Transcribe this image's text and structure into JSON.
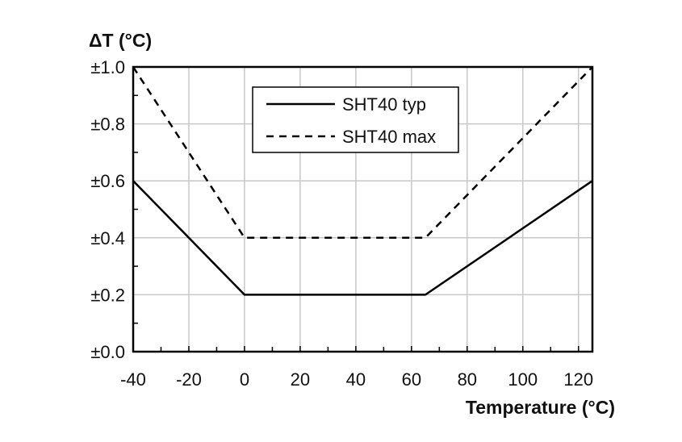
{
  "chart_data": {
    "type": "line",
    "ylabel": "ΔT (°C)",
    "xlabel": "Temperature (°C)",
    "xlim": [
      -40,
      125
    ],
    "ylim": [
      0,
      1.0
    ],
    "x_ticks": [
      -40,
      -20,
      0,
      20,
      40,
      60,
      80,
      100,
      120
    ],
    "y_ticks": [
      0.0,
      0.2,
      0.4,
      0.6,
      0.8,
      1.0
    ],
    "y_tick_labels": [
      "±0.0",
      "±0.2",
      "±0.4",
      "±0.6",
      "±0.8",
      "±1.0"
    ],
    "grid": true,
    "legend_position": "top-center",
    "series": [
      {
        "name": "SHT40 typ",
        "style": "solid",
        "points": [
          [
            -40,
            0.6
          ],
          [
            0,
            0.2
          ],
          [
            65,
            0.2
          ],
          [
            125,
            0.6
          ]
        ]
      },
      {
        "name": "SHT40 max",
        "style": "dashed",
        "points": [
          [
            -40,
            1.0
          ],
          [
            0,
            0.4
          ],
          [
            65,
            0.4
          ],
          [
            125,
            1.0
          ]
        ]
      }
    ]
  }
}
